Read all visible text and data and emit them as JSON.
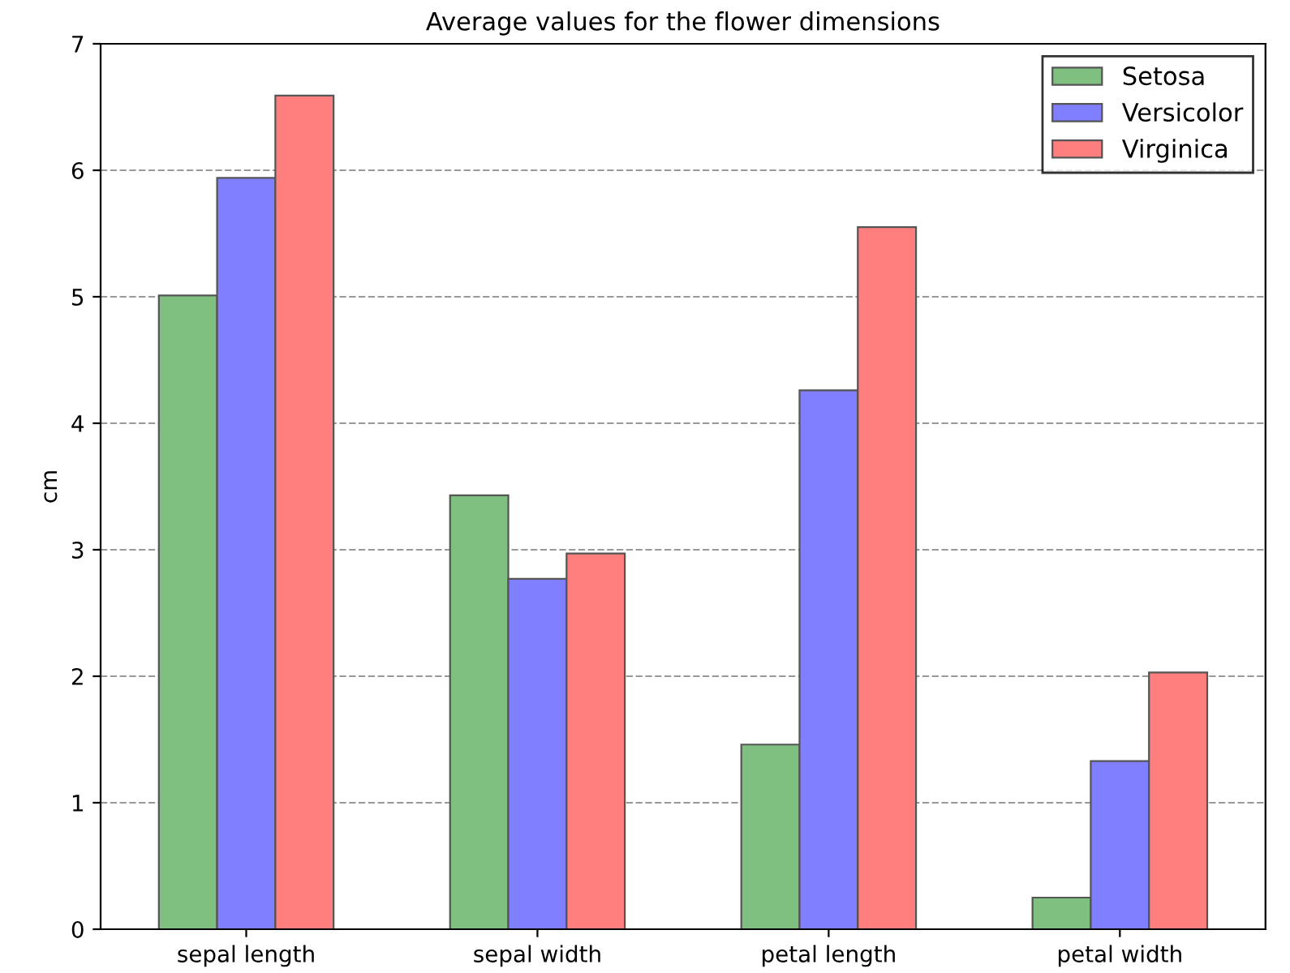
{
  "chart_data": {
    "type": "bar",
    "title": "Average values for the flower dimensions",
    "ylabel": "cm",
    "categories": [
      "sepal length",
      "sepal width",
      "petal length",
      "petal width"
    ],
    "series": [
      {
        "name": "Setosa",
        "color": "#7fbf7f",
        "values": [
          5.01,
          3.43,
          1.46,
          0.25
        ]
      },
      {
        "name": "Versicolor",
        "color": "#7f7fff",
        "values": [
          5.94,
          2.77,
          4.26,
          1.33
        ]
      },
      {
        "name": "Virginica",
        "color": "#ff7f7f",
        "values": [
          6.59,
          2.97,
          5.55,
          2.03
        ]
      }
    ],
    "ylim": [
      0,
      7
    ],
    "yticks": [
      0,
      1,
      2,
      3,
      4,
      5,
      6,
      7
    ],
    "grid": "y",
    "legend": "top right"
  }
}
